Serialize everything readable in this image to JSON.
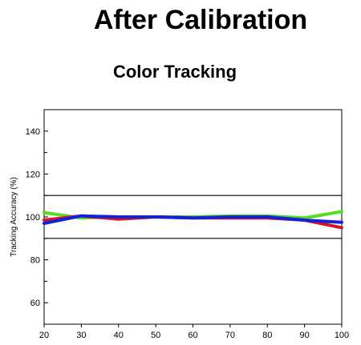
{
  "header": {
    "title": "After Calibration"
  },
  "chart_data": {
    "type": "line",
    "title": "Color Tracking",
    "xlabel": "",
    "ylabel": "Tracking Accuracy (%)",
    "xlim": [
      20,
      100
    ],
    "ylim": [
      50,
      150
    ],
    "x_ticks": [
      20,
      30,
      40,
      50,
      60,
      70,
      80,
      90,
      100
    ],
    "y_ticks": [
      60,
      80,
      100,
      120,
      140
    ],
    "y_minor_ticks": [
      70,
      90,
      110,
      130
    ],
    "reference_lines": [
      110,
      90
    ],
    "grid": false,
    "legend": "none",
    "x": [
      20,
      30,
      40,
      50,
      60,
      70,
      80,
      90,
      100
    ],
    "series": [
      {
        "color": "#55dd22",
        "values": [
          102,
          99.5,
          100,
          100,
          100,
          100.5,
          100.5,
          99.5,
          102.5
        ]
      },
      {
        "color": "#dd1122",
        "values": [
          98.5,
          100.5,
          99,
          100,
          99.5,
          99.5,
          99.5,
          98.5,
          95
        ]
      },
      {
        "color": "#1122dd",
        "values": [
          97,
          100.5,
          100,
          100,
          99.5,
          100,
          100,
          98.5,
          97.5
        ]
      }
    ]
  }
}
